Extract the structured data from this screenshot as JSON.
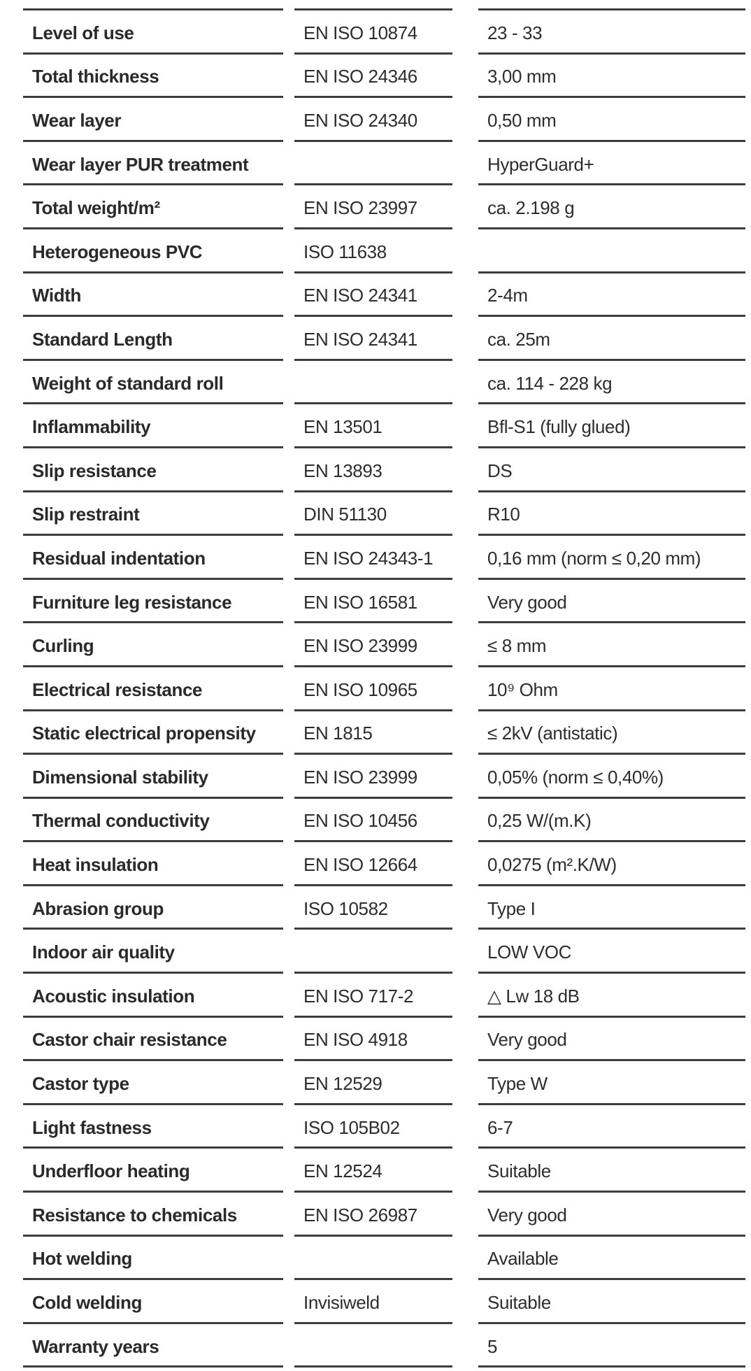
{
  "document": {
    "kind": "product-technical-specification-table",
    "columns": [
      "property",
      "standard",
      "value"
    ]
  },
  "colors": {
    "background": "#ffffff",
    "text": "#2b2a29",
    "rule": "#3d3d3d"
  },
  "table": {
    "rows": [
      {
        "property": "Level of use",
        "standard": "EN ISO 10874",
        "value": "23 - 33"
      },
      {
        "property": "Total thickness",
        "standard": "EN ISO 24346",
        "value": "3,00 mm"
      },
      {
        "property": "Wear layer",
        "standard": "EN ISO 24340",
        "value": "0,50 mm"
      },
      {
        "property": "Wear layer PUR treatment",
        "standard": "",
        "value": "HyperGuard+"
      },
      {
        "property": "Total weight/m²",
        "standard": "EN ISO 23997",
        "value": "ca. 2.198 g"
      },
      {
        "property": "Heterogeneous PVC",
        "standard": "ISO 11638",
        "value": ""
      },
      {
        "property": "Width",
        "standard": "EN ISO 24341",
        "value": "2-4m"
      },
      {
        "property": "Standard Length",
        "standard": "EN ISO 24341",
        "value": "ca. 25m"
      },
      {
        "property": "Weight of standard roll",
        "standard": "",
        "value": "ca. 114 - 228 kg"
      },
      {
        "property": "Inflammability",
        "standard": "EN 13501",
        "value": "Bfl-S1 (fully glued)"
      },
      {
        "property": "Slip resistance",
        "standard": "EN 13893",
        "value": "DS"
      },
      {
        "property": "Slip restraint",
        "standard": "DIN 51130",
        "value": "R10"
      },
      {
        "property": "Residual indentation",
        "standard": "EN ISO 24343-1",
        "value": "0,16 mm (norm ≤ 0,20 mm)"
      },
      {
        "property": "Furniture leg resistance",
        "standard": "EN ISO 16581",
        "value": "Very good"
      },
      {
        "property": "Curling",
        "standard": "EN ISO 23999",
        "value": "≤ 8 mm"
      },
      {
        "property": "Electrical resistance",
        "standard": "EN ISO 10965",
        "value": "10⁹ Ohm"
      },
      {
        "property": "Static electrical propensity",
        "standard": "EN 1815",
        "value": "≤ 2kV (antistatic)"
      },
      {
        "property": "Dimensional stability",
        "standard": "EN ISO 23999",
        "value": "0,05% (norm ≤ 0,40%)"
      },
      {
        "property": "Thermal conductivity",
        "standard": "EN ISO 10456",
        "value": "0,25 W/(m.K)"
      },
      {
        "property": "Heat insulation",
        "standard": "EN ISO 12664",
        "value": "0,0275 (m².K/W)"
      },
      {
        "property": "Abrasion group",
        "standard": "ISO 10582",
        "value": "Type I"
      },
      {
        "property": "Indoor air quality",
        "standard": "",
        "value": "LOW VOC"
      },
      {
        "property": "Acoustic insulation",
        "standard": "EN ISO 717-2",
        "value": "△ Lw 18 dB"
      },
      {
        "property": "Castor chair resistance",
        "standard": "EN ISO 4918",
        "value": "Very good"
      },
      {
        "property": "Castor type",
        "standard": "EN 12529",
        "value": "Type W"
      },
      {
        "property": "Light fastness",
        "standard": "ISO 105B02",
        "value": "6-7"
      },
      {
        "property": "Underfloor heating",
        "standard": "EN 12524",
        "value": "Suitable"
      },
      {
        "property": "Resistance to chemicals",
        "standard": "EN ISO 26987",
        "value": "Very good"
      },
      {
        "property": "Hot welding",
        "standard": "",
        "value": "Available"
      },
      {
        "property": "Cold welding",
        "standard": "Invisiweld",
        "value": "Suitable"
      },
      {
        "property": "Warranty years",
        "standard": "",
        "value": "5"
      }
    ]
  }
}
